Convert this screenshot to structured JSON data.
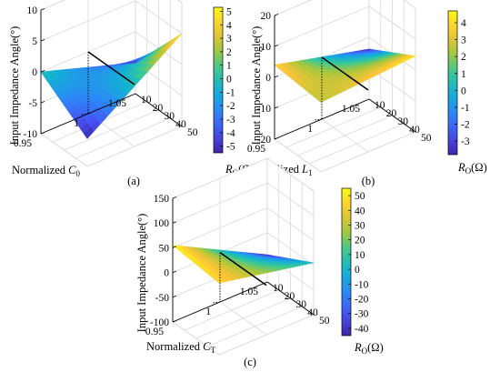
{
  "figure": {
    "panels": [
      {
        "tag": "(a)"
      },
      {
        "tag": "(b)"
      },
      {
        "tag": "(c)"
      }
    ]
  },
  "chart_data": [
    {
      "type": "surface3d",
      "panel_tag": "(a)",
      "zlabel": "Input Impedance Angle(°)",
      "xlabel_prefix": "Normalized ",
      "xlabel_sym": "C",
      "xlabel_sub": "0",
      "ylabel_sym": "R",
      "ylabel_sub": "O",
      "ylabel_unit": "(Ω)",
      "x_ticks": [
        "0.95",
        "1",
        "1.05"
      ],
      "xlim": [
        0.95,
        1.05
      ],
      "y_ticks": [
        "10",
        "20",
        "30",
        "40",
        "50"
      ],
      "ylim": [
        10,
        50
      ],
      "z_ticks": [
        "10",
        "5",
        "0",
        "-5",
        "-10"
      ],
      "zlim": [
        -10,
        10
      ],
      "colorbar_ticks": [
        "5",
        "4",
        "3",
        "2",
        "1",
        "0",
        "-1",
        "-2",
        "-3",
        "-4",
        "-5"
      ],
      "colorbar_range": [
        -5.5,
        5.3
      ],
      "corner_z": {
        "x0.95_R10": 0.0,
        "x1.05_R10": -5.0,
        "x0.95_R50": -5.5,
        "x1.05_R50": 5.0
      },
      "highlight_line": {
        "x": 1.0,
        "z": 0
      }
    },
    {
      "type": "surface3d",
      "panel_tag": "(b)",
      "zlabel": "Input Impedance Angle(°)",
      "xlabel_prefix": "Normalized ",
      "xlabel_sym": "L",
      "xlabel_sub": "1",
      "ylabel_sym": "R",
      "ylabel_sub": "O",
      "ylabel_unit": "(Ω)",
      "x_ticks": [
        "0.95",
        "1",
        "1.05"
      ],
      "xlim": [
        0.95,
        1.05
      ],
      "y_ticks": [
        "10",
        "20",
        "30",
        "40",
        "50"
      ],
      "ylim": [
        10,
        50
      ],
      "z_ticks": [
        "20",
        "10",
        "0",
        "-10",
        "-20"
      ],
      "zlim": [
        -20,
        20
      ],
      "colorbar_ticks": [
        "4",
        "3",
        "2",
        "1",
        "0",
        "-1",
        "-2",
        "-3"
      ],
      "colorbar_range": [
        -3.8,
        4.7
      ],
      "corner_z": {
        "x0.95_R10": 4.0,
        "x1.05_R10": -3.8,
        "x0.95_R50": 2.5,
        "x1.05_R50": 4.5
      },
      "highlight_line": {
        "x": 1.0,
        "z": 0
      }
    },
    {
      "type": "surface3d",
      "panel_tag": "(c)",
      "zlabel": "Input Impedance Angle(°)",
      "xlabel_prefix": "Normalized ",
      "xlabel_sym": "C",
      "xlabel_sub": "T",
      "ylabel_sym": "R",
      "ylabel_sub": "O",
      "ylabel_unit": "(Ω)",
      "x_ticks": [
        "0.95",
        "1",
        "1.05"
      ],
      "xlim": [
        0.95,
        1.05
      ],
      "y_ticks": [
        "10",
        "20",
        "30",
        "40",
        "50"
      ],
      "ylim": [
        10,
        50
      ],
      "z_ticks": [
        "150",
        "100",
        "50",
        "0",
        "-50",
        "-100"
      ],
      "zlim": [
        -100,
        150
      ],
      "colorbar_ticks": [
        "50",
        "40",
        "30",
        "20",
        "10",
        "0",
        "-10",
        "-20",
        "-30",
        "-40"
      ],
      "colorbar_range": [
        -45,
        55
      ],
      "corner_z": {
        "x0.95_R10": 55,
        "x1.05_R10": -45,
        "x0.95_R50": 45,
        "x1.05_R50": 5
      },
      "highlight_line": {
        "x": 1.0,
        "z": 0
      }
    }
  ]
}
